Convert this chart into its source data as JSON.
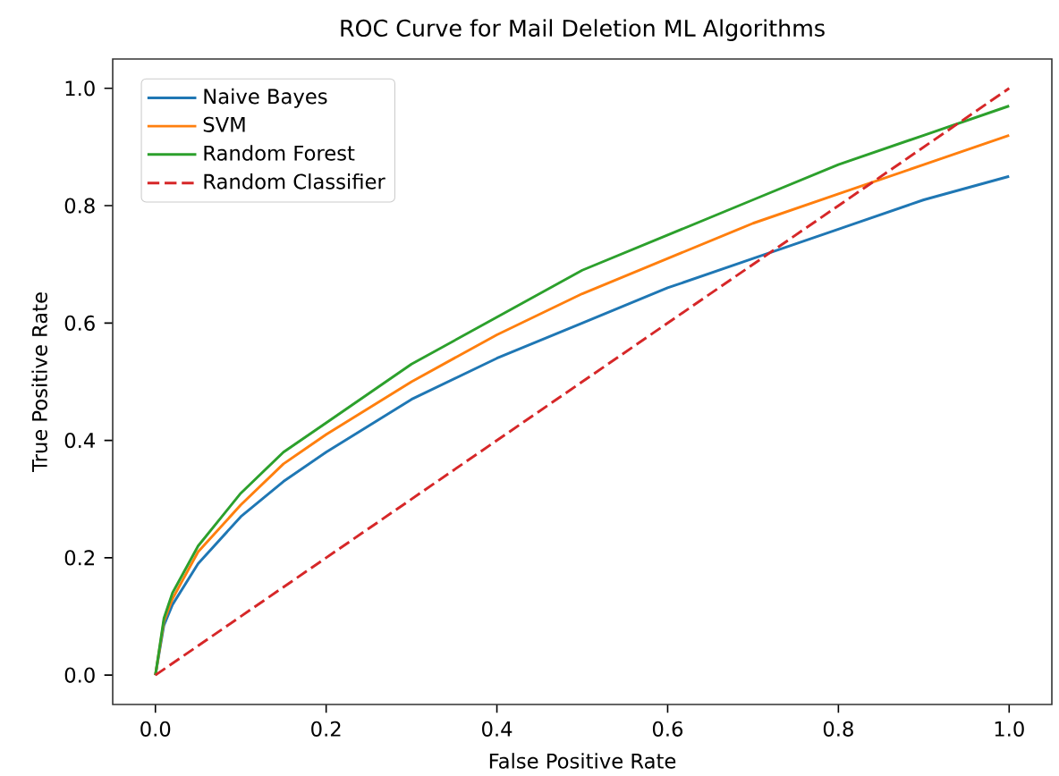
{
  "chart_data": {
    "type": "line",
    "title": "ROC Curve for Mail Deletion ML Algorithms",
    "xlabel": "False Positive Rate",
    "ylabel": "True Positive Rate",
    "xlim": [
      -0.05,
      1.05
    ],
    "ylim": [
      -0.05,
      1.05
    ],
    "xticks": [
      {
        "value": 0,
        "label": "0.0"
      },
      {
        "value": 0.2,
        "label": "0.2"
      },
      {
        "value": 0.4,
        "label": "0.4"
      },
      {
        "value": 0.6,
        "label": "0.6"
      },
      {
        "value": 0.8,
        "label": "0.8"
      },
      {
        "value": 1,
        "label": "1.0"
      }
    ],
    "yticks": [
      {
        "value": 0,
        "label": "0.0"
      },
      {
        "value": 0.2,
        "label": "0.2"
      },
      {
        "value": 0.4,
        "label": "0.4"
      },
      {
        "value": 0.6,
        "label": "0.6"
      },
      {
        "value": 0.8,
        "label": "0.8"
      },
      {
        "value": 1,
        "label": "1.0"
      }
    ],
    "legend": "top left",
    "grid": false,
    "series": [
      {
        "name": "Naive Bayes",
        "color": "#1f77b4",
        "line_style": "solid",
        "x": [
          0,
          0.01,
          0.02,
          0.05,
          0.1,
          0.15,
          0.2,
          0.3,
          0.4,
          0.5,
          0.6,
          0.7,
          0.8,
          0.9,
          1.0
        ],
        "values": [
          0,
          0.085,
          0.12,
          0.19,
          0.27,
          0.33,
          0.38,
          0.47,
          0.54,
          0.6,
          0.66,
          0.71,
          0.76,
          0.81,
          0.85
        ]
      },
      {
        "name": "SVM",
        "color": "#ff7f0e",
        "line_style": "solid",
        "x": [
          0,
          0.01,
          0.02,
          0.05,
          0.1,
          0.15,
          0.2,
          0.3,
          0.4,
          0.5,
          0.6,
          0.7,
          0.8,
          0.9,
          1.0
        ],
        "values": [
          0,
          0.092,
          0.13,
          0.21,
          0.29,
          0.36,
          0.41,
          0.5,
          0.58,
          0.65,
          0.71,
          0.77,
          0.82,
          0.87,
          0.92
        ]
      },
      {
        "name": "Random Forest",
        "color": "#2ca02c",
        "line_style": "solid",
        "x": [
          0,
          0.01,
          0.02,
          0.05,
          0.1,
          0.15,
          0.2,
          0.3,
          0.4,
          0.5,
          0.6,
          0.7,
          0.8,
          0.9,
          1.0
        ],
        "values": [
          0,
          0.097,
          0.14,
          0.22,
          0.31,
          0.38,
          0.43,
          0.53,
          0.61,
          0.69,
          0.75,
          0.81,
          0.87,
          0.92,
          0.97
        ]
      },
      {
        "name": "Random Classifier",
        "color": "#d62728",
        "line_style": "dashed",
        "x": [
          0,
          1
        ],
        "values": [
          0,
          1
        ]
      }
    ]
  }
}
